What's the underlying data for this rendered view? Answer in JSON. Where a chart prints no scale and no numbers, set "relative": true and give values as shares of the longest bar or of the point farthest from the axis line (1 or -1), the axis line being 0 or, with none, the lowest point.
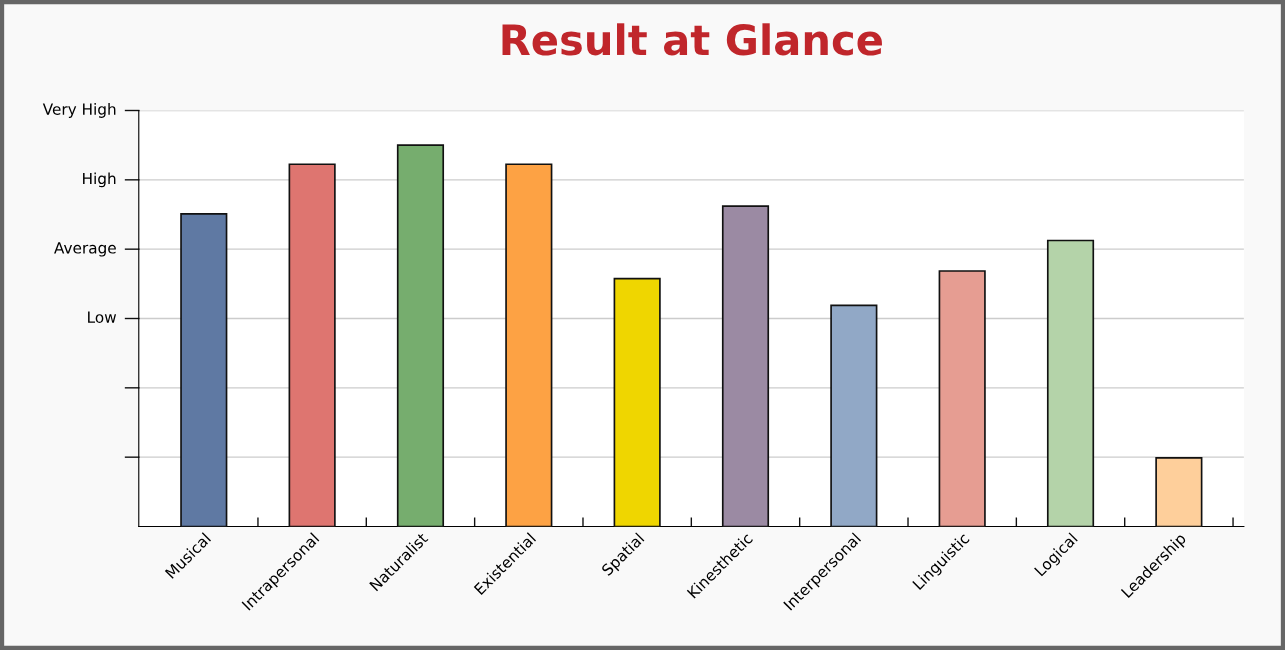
{
  "chart_data": {
    "type": "bar",
    "title": "Result at Glance",
    "categories": [
      "Musical",
      "Intrapersonal",
      "Naturalist",
      "Existential",
      "Spatial",
      "Kinesthetic",
      "Interpersonal",
      "Linguistic",
      "Logical",
      "Leadership"
    ],
    "values": [
      0.82,
      0.95,
      1,
      0.95,
      0.65,
      0.84,
      0.58,
      0.67,
      0.75,
      0.18
    ],
    "colors": [
      "#5f79a3",
      "#de7570",
      "#76ad6e",
      "#fda244",
      "#efd600",
      "#9b8aa3",
      "#91a8c6",
      "#e69d92",
      "#b4d3a9",
      "#fecf9b"
    ],
    "relative": true,
    "annotations": [
      "Low",
      "Average",
      "High",
      "Very High"
    ],
    "grid": "y"
  }
}
